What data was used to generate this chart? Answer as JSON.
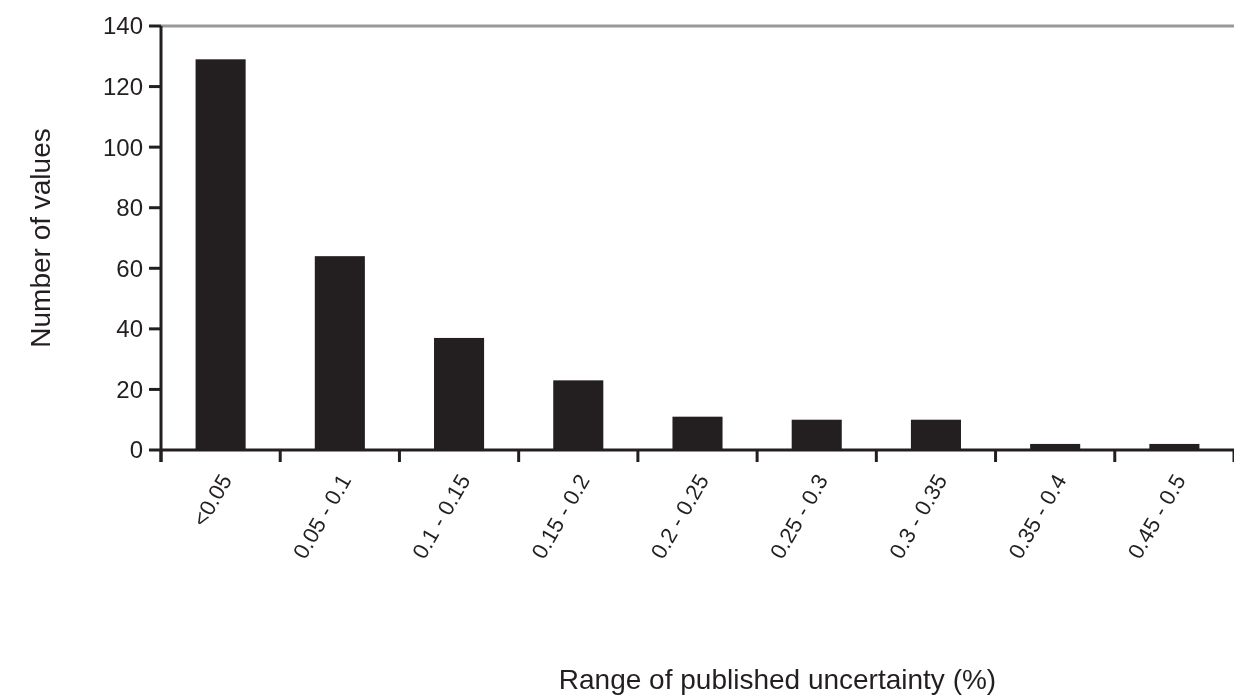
{
  "chart_data": {
    "type": "bar",
    "xlabel": "Range of published uncertainty (%)",
    "ylabel": "Number of values",
    "categories": [
      "<0.05",
      "0.05 - 0.1",
      "0.1 - 0.15",
      "0.15 - 0.2",
      "0.2 - 0.25",
      "0.25 - 0.3",
      "0.3 - 0.35",
      "0.35 - 0.4",
      "0.45 - 0.5"
    ],
    "values": [
      129,
      64,
      37,
      23,
      11,
      10,
      10,
      2,
      2
    ],
    "color": "#231f20",
    "ylim": [
      0,
      140
    ],
    "yticks": [
      0,
      20,
      40,
      60,
      80,
      100,
      120,
      140
    ],
    "grid": false
  }
}
